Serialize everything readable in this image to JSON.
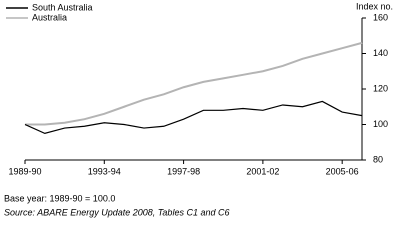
{
  "chart_data": {
    "type": "line",
    "categories": [
      "1989-90",
      null,
      null,
      null,
      "1993-94",
      null,
      null,
      null,
      "1997-98",
      null,
      null,
      null,
      "2001-02",
      null,
      null,
      null,
      "2005-06",
      null
    ],
    "series": [
      {
        "name": "South Australia",
        "color": "#000000",
        "values": [
          100,
          95,
          98,
          99,
          101,
          100,
          98,
          99,
          103,
          108,
          108,
          109,
          108,
          111,
          110,
          113,
          107,
          105
        ]
      },
      {
        "name": "Australia",
        "color": "#b4b4b4",
        "values": [
          100,
          100,
          101,
          103,
          106,
          110,
          114,
          117,
          121,
          124,
          126,
          128,
          130,
          133,
          137,
          140,
          143,
          146
        ]
      }
    ],
    "y_axis_label": "Index no.",
    "ylim": [
      80,
      160
    ],
    "yticks": [
      80,
      100,
      120,
      140,
      160
    ],
    "grid": false,
    "legend": "top-left",
    "notes": [
      "Base year: 1989-90 = 100.0",
      "Source: ABARE Energy Update 2008, Tables C1 and C6"
    ]
  }
}
